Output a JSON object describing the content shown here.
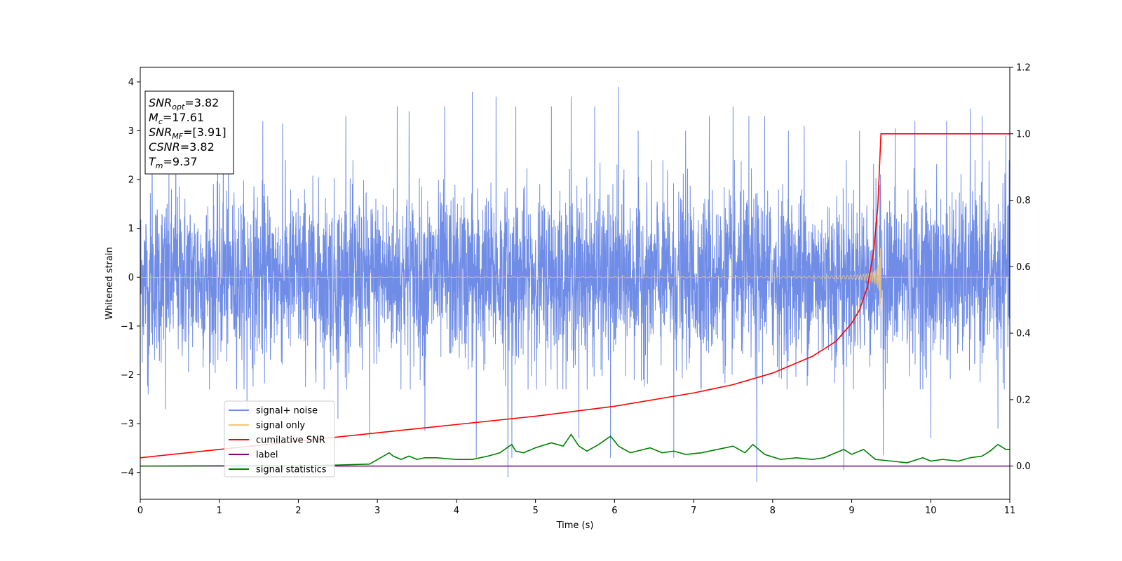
{
  "chart_data": {
    "type": "line",
    "xlabel": "Time (s)",
    "ylabel": "Whitened strain",
    "xlim": [
      0,
      11
    ],
    "ylim_left": [
      -4.55,
      4.3
    ],
    "ylim_right": [
      -0.1,
      1.2
    ],
    "x_ticks": [
      0,
      1,
      2,
      3,
      4,
      5,
      6,
      7,
      8,
      9,
      10,
      11
    ],
    "y_ticks_left": [
      -4,
      -3,
      -2,
      -1,
      0,
      1,
      2,
      3,
      4
    ],
    "y_ticks_right": [
      0.0,
      0.2,
      0.4,
      0.6,
      0.8,
      1.0,
      1.2
    ],
    "grid": false,
    "legend_position": "lower-left",
    "annotations": [
      {
        "base": "SNR",
        "sub": "opt",
        "value": "=3.82"
      },
      {
        "base": "M",
        "sub": "c",
        "value": "=17.61"
      },
      {
        "base": "SNR",
        "sub": "MF",
        "value": "=[3.91]"
      },
      {
        "base": "CSNR",
        "sub": "",
        "value": "=3.82"
      },
      {
        "base": "T",
        "sub": "m",
        "value": "=9.37"
      }
    ],
    "series": [
      {
        "name": "signal+ noise",
        "axis": "left",
        "color": "#6f8ce6",
        "kind": "noise",
        "typical_range": [
          -2.3,
          2.4
        ],
        "peak_points": [
          [
            0.1,
            -2.4
          ],
          [
            0.15,
            3.1
          ],
          [
            0.32,
            -2.7
          ],
          [
            0.45,
            2.9
          ],
          [
            1.05,
            3.3
          ],
          [
            1.35,
            -2.85
          ],
          [
            1.55,
            3.2
          ],
          [
            1.8,
            3.15
          ],
          [
            2.5,
            -2.9
          ],
          [
            2.6,
            3.3
          ],
          [
            2.9,
            -3.3
          ],
          [
            3.25,
            3.5
          ],
          [
            3.4,
            3.4
          ],
          [
            3.6,
            -3.15
          ],
          [
            3.85,
            3.5
          ],
          [
            4.2,
            3.8
          ],
          [
            4.25,
            -3.7
          ],
          [
            4.5,
            3.7
          ],
          [
            4.65,
            -4.1
          ],
          [
            4.7,
            -3.7
          ],
          [
            4.75,
            3.5
          ],
          [
            5.2,
            3.5
          ],
          [
            5.45,
            3.7
          ],
          [
            5.55,
            -3.3
          ],
          [
            5.75,
            3.5
          ],
          [
            5.95,
            -3.7
          ],
          [
            6.05,
            3.9
          ],
          [
            6.3,
            3.0
          ],
          [
            6.75,
            -3.7
          ],
          [
            6.9,
            3.0
          ],
          [
            7.2,
            3.3
          ],
          [
            7.5,
            3.5
          ],
          [
            7.7,
            3.3
          ],
          [
            7.8,
            -4.2
          ],
          [
            7.9,
            3.3
          ],
          [
            8.2,
            3.0
          ],
          [
            8.4,
            3.1
          ],
          [
            8.9,
            -3.95
          ],
          [
            9.1,
            3.0
          ],
          [
            9.4,
            -3.65
          ],
          [
            9.55,
            3.05
          ],
          [
            9.8,
            3.2
          ],
          [
            10.0,
            -3.3
          ],
          [
            10.2,
            3.2
          ],
          [
            10.5,
            3.45
          ],
          [
            10.65,
            3.3
          ],
          [
            10.85,
            -3.1
          ],
          [
            10.95,
            2.9
          ]
        ]
      },
      {
        "name": "signal only",
        "axis": "left",
        "color": "#f5c77a",
        "kind": "chirp",
        "end_time": 9.37,
        "peak_amplitude": 0.72
      },
      {
        "name": "cumilative SNR",
        "axis": "right",
        "color": "#ff0000",
        "x": [
          0,
          1,
          2,
          3,
          4,
          5,
          6,
          7,
          7.5,
          8,
          8.5,
          8.8,
          9.0,
          9.1,
          9.2,
          9.28,
          9.33,
          9.37,
          11
        ],
        "values": [
          0.025,
          0.05,
          0.075,
          0.1,
          0.125,
          0.15,
          0.18,
          0.22,
          0.245,
          0.28,
          0.33,
          0.375,
          0.43,
          0.47,
          0.54,
          0.65,
          0.78,
          1.0,
          1.0
        ]
      },
      {
        "name": "label",
        "axis": "right",
        "color": "#800080",
        "x": [
          0,
          11
        ],
        "values": [
          0.0,
          0.0
        ]
      },
      {
        "name": "signal statistics",
        "axis": "right",
        "color": "#008000",
        "x": [
          0,
          1,
          2,
          2.5,
          2.9,
          3.15,
          3.2,
          3.3,
          3.4,
          3.5,
          3.6,
          3.75,
          4.0,
          4.2,
          4.4,
          4.55,
          4.7,
          4.75,
          4.85,
          5.0,
          5.2,
          5.35,
          5.45,
          5.55,
          5.65,
          5.8,
          5.95,
          6.05,
          6.2,
          6.45,
          6.6,
          6.75,
          6.9,
          7.1,
          7.3,
          7.5,
          7.65,
          7.75,
          7.9,
          8.1,
          8.3,
          8.5,
          8.65,
          8.8,
          8.9,
          9.0,
          9.15,
          9.3,
          9.5,
          9.7,
          9.9,
          10.0,
          10.15,
          10.35,
          10.5,
          10.65,
          10.75,
          10.85,
          10.95,
          11
        ],
        "values": [
          0.0,
          0.001,
          0.001,
          0.003,
          0.006,
          0.04,
          0.03,
          0.02,
          0.03,
          0.02,
          0.025,
          0.025,
          0.02,
          0.02,
          0.03,
          0.04,
          0.065,
          0.045,
          0.04,
          0.055,
          0.07,
          0.06,
          0.095,
          0.06,
          0.045,
          0.065,
          0.09,
          0.06,
          0.04,
          0.055,
          0.04,
          0.045,
          0.035,
          0.04,
          0.05,
          0.06,
          0.04,
          0.065,
          0.035,
          0.02,
          0.025,
          0.02,
          0.025,
          0.04,
          0.05,
          0.035,
          0.05,
          0.02,
          0.015,
          0.01,
          0.025,
          0.015,
          0.02,
          0.015,
          0.025,
          0.03,
          0.045,
          0.065,
          0.05,
          0.05
        ]
      }
    ]
  }
}
